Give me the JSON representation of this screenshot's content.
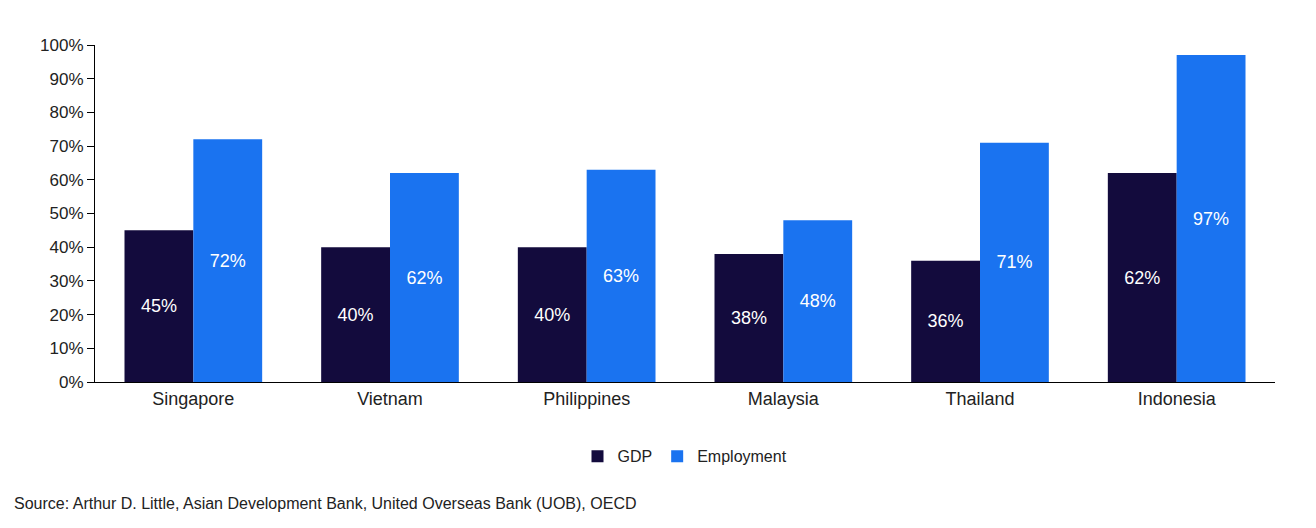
{
  "chart_data": {
    "type": "bar",
    "categories": [
      "Singapore",
      "Vietnam",
      "Philippines",
      "Malaysia",
      "Thailand",
      "Indonesia"
    ],
    "series": [
      {
        "name": "GDP",
        "color": "#130b3d",
        "values": [
          45,
          40,
          40,
          38,
          36,
          62
        ],
        "value_labels": [
          "45%",
          "40%",
          "40%",
          "38%",
          "36%",
          "62%"
        ]
      },
      {
        "name": "Employment",
        "color": "#1a73f0",
        "values": [
          72,
          62,
          63,
          48,
          71,
          97
        ],
        "value_labels": [
          "72%",
          "62%",
          "63%",
          "48%",
          "71%",
          "97%"
        ]
      }
    ],
    "ylim": [
      0,
      100
    ],
    "yticks": [
      {
        "value": 0,
        "label": "0%"
      },
      {
        "value": 10,
        "label": "10%"
      },
      {
        "value": 20,
        "label": "20%"
      },
      {
        "value": 30,
        "label": "30%"
      },
      {
        "value": 40,
        "label": "40%"
      },
      {
        "value": 50,
        "label": "50%"
      },
      {
        "value": 60,
        "label": "60%"
      },
      {
        "value": 70,
        "label": "70%"
      },
      {
        "value": 80,
        "label": "80%"
      },
      {
        "value": 90,
        "label": "90%"
      },
      {
        "value": 100,
        "label": "100%"
      }
    ],
    "grid": false,
    "legend": "bottom",
    "data_labels": true,
    "annotations": [
      "Source: Arthur D. Little, Asian Development Bank, United Overseas Bank (UOB), OECD"
    ]
  }
}
